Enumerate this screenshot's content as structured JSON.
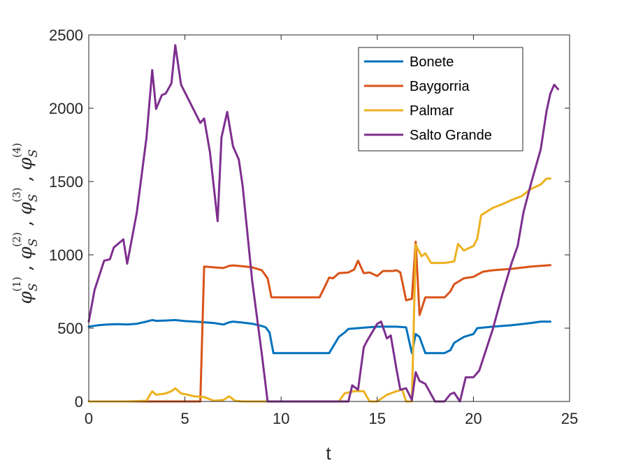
{
  "chart_data": {
    "type": "line",
    "title": "",
    "xlabel": "t",
    "ylabel": {
      "base": "φ",
      "sub": "S",
      "sups": [
        "(1)",
        "(2)",
        "(3)",
        "(4)"
      ],
      "separator": ","
    },
    "xlim": [
      0,
      25
    ],
    "ylim": [
      0,
      2500
    ],
    "xticks": [
      0,
      5,
      10,
      15,
      20,
      25
    ],
    "yticks": [
      0,
      500,
      1000,
      1500,
      2000,
      2500
    ],
    "grid": false,
    "legend_position": "top-right",
    "series": [
      {
        "name": "Bonete",
        "color": "#0072BD",
        "points": [
          [
            0,
            510
          ],
          [
            0.5,
            520
          ],
          [
            1,
            525
          ],
          [
            1.5,
            527
          ],
          [
            2,
            525
          ],
          [
            2.5,
            530
          ],
          [
            3,
            545
          ],
          [
            3.3,
            555
          ],
          [
            3.5,
            550
          ],
          [
            4,
            552
          ],
          [
            4.5,
            555
          ],
          [
            5,
            548
          ],
          [
            5.5,
            545
          ],
          [
            6,
            540
          ],
          [
            6.5,
            535
          ],
          [
            7,
            525
          ],
          [
            7.3,
            540
          ],
          [
            7.5,
            545
          ],
          [
            8,
            538
          ],
          [
            8.5,
            530
          ],
          [
            9,
            515
          ],
          [
            9.2,
            505
          ],
          [
            9.4,
            470
          ],
          [
            9.6,
            330
          ],
          [
            10,
            330
          ],
          [
            11,
            330
          ],
          [
            12,
            330
          ],
          [
            12.5,
            330
          ],
          [
            13,
            440
          ],
          [
            13.3,
            470
          ],
          [
            13.5,
            495
          ],
          [
            14,
            500
          ],
          [
            14.5,
            505
          ],
          [
            15,
            510
          ],
          [
            15.5,
            510
          ],
          [
            16,
            510
          ],
          [
            16.5,
            505
          ],
          [
            16.8,
            330
          ],
          [
            17,
            460
          ],
          [
            17.2,
            440
          ],
          [
            17.5,
            330
          ],
          [
            18,
            330
          ],
          [
            18.5,
            330
          ],
          [
            18.8,
            350
          ],
          [
            19,
            400
          ],
          [
            19.5,
            440
          ],
          [
            20,
            460
          ],
          [
            20.2,
            500
          ],
          [
            21,
            510
          ],
          [
            22,
            520
          ],
          [
            23,
            535
          ],
          [
            23.5,
            545
          ],
          [
            24,
            545
          ]
        ]
      },
      {
        "name": "Baygorria",
        "color": "#D95319",
        "points": [
          [
            0,
            0
          ],
          [
            1,
            0
          ],
          [
            2,
            0
          ],
          [
            3,
            0
          ],
          [
            4,
            0
          ],
          [
            5,
            0
          ],
          [
            5.8,
            0
          ],
          [
            6,
            920
          ],
          [
            6.5,
            915
          ],
          [
            7,
            910
          ],
          [
            7.3,
            925
          ],
          [
            7.5,
            928
          ],
          [
            8,
            922
          ],
          [
            8.5,
            915
          ],
          [
            9,
            895
          ],
          [
            9.3,
            840
          ],
          [
            9.5,
            710
          ],
          [
            10,
            710
          ],
          [
            11,
            710
          ],
          [
            12,
            710
          ],
          [
            12.3,
            790
          ],
          [
            12.5,
            845
          ],
          [
            12.7,
            840
          ],
          [
            13,
            875
          ],
          [
            13.5,
            880
          ],
          [
            13.8,
            900
          ],
          [
            14,
            960
          ],
          [
            14.3,
            875
          ],
          [
            14.6,
            880
          ],
          [
            15,
            855
          ],
          [
            15.3,
            890
          ],
          [
            15.8,
            890
          ],
          [
            16,
            895
          ],
          [
            16.2,
            880
          ],
          [
            16.5,
            690
          ],
          [
            16.8,
            700
          ],
          [
            17,
            1090
          ],
          [
            17.2,
            590
          ],
          [
            17.5,
            710
          ],
          [
            18,
            710
          ],
          [
            18.5,
            710
          ],
          [
            18.8,
            750
          ],
          [
            19,
            800
          ],
          [
            19.5,
            840
          ],
          [
            20,
            850
          ],
          [
            20.5,
            885
          ],
          [
            21,
            895
          ],
          [
            22,
            905
          ],
          [
            23,
            920
          ],
          [
            24,
            930
          ]
        ]
      },
      {
        "name": "Palmar",
        "color": "#EDB120",
        "points": [
          [
            0,
            0
          ],
          [
            1,
            0
          ],
          [
            2,
            0
          ],
          [
            3,
            5
          ],
          [
            3.3,
            70
          ],
          [
            3.5,
            45
          ],
          [
            4,
            55
          ],
          [
            4.3,
            70
          ],
          [
            4.5,
            90
          ],
          [
            4.8,
            55
          ],
          [
            5,
            50
          ],
          [
            5.5,
            35
          ],
          [
            6,
            30
          ],
          [
            6.5,
            5
          ],
          [
            7,
            10
          ],
          [
            7.3,
            35
          ],
          [
            7.6,
            5
          ],
          [
            8,
            0
          ],
          [
            9,
            0
          ],
          [
            10,
            0
          ],
          [
            11,
            0
          ],
          [
            12,
            0
          ],
          [
            13,
            0
          ],
          [
            13.3,
            55
          ],
          [
            13.8,
            70
          ],
          [
            14.3,
            70
          ],
          [
            14.6,
            0
          ],
          [
            15,
            0
          ],
          [
            15.5,
            45
          ],
          [
            16,
            70
          ],
          [
            16.3,
            80
          ],
          [
            16.5,
            0
          ],
          [
            16.8,
            0
          ],
          [
            17,
            1070
          ],
          [
            17.3,
            990
          ],
          [
            17.5,
            1010
          ],
          [
            17.8,
            945
          ],
          [
            18,
            945
          ],
          [
            18.5,
            945
          ],
          [
            19,
            955
          ],
          [
            19.2,
            1075
          ],
          [
            19.5,
            1030
          ],
          [
            20,
            1060
          ],
          [
            20.2,
            1110
          ],
          [
            20.4,
            1270
          ],
          [
            21,
            1320
          ],
          [
            21.5,
            1345
          ],
          [
            22,
            1375
          ],
          [
            22.5,
            1400
          ],
          [
            23,
            1450
          ],
          [
            23.5,
            1480
          ],
          [
            23.8,
            1520
          ],
          [
            24,
            1520
          ]
        ]
      },
      {
        "name": "Salto Grande",
        "color": "#7E2F8E",
        "points": [
          [
            0,
            545
          ],
          [
            0.3,
            760
          ],
          [
            0.8,
            960
          ],
          [
            1.1,
            970
          ],
          [
            1.3,
            1050
          ],
          [
            1.8,
            1105
          ],
          [
            2,
            940
          ],
          [
            2.5,
            1290
          ],
          [
            3,
            1800
          ],
          [
            3.3,
            2260
          ],
          [
            3.5,
            1995
          ],
          [
            3.8,
            2090
          ],
          [
            4,
            2100
          ],
          [
            4.3,
            2170
          ],
          [
            4.5,
            2430
          ],
          [
            4.8,
            2160
          ],
          [
            5.3,
            2030
          ],
          [
            5.8,
            1900
          ],
          [
            6,
            1930
          ],
          [
            6.3,
            1700
          ],
          [
            6.7,
            1230
          ],
          [
            6.9,
            1800
          ],
          [
            7.2,
            1975
          ],
          [
            7.5,
            1740
          ],
          [
            7.8,
            1650
          ],
          [
            8,
            1470
          ],
          [
            8.5,
            820
          ],
          [
            9,
            320
          ],
          [
            9.3,
            0
          ],
          [
            10,
            0
          ],
          [
            11,
            0
          ],
          [
            12,
            0
          ],
          [
            13,
            0
          ],
          [
            13.5,
            0
          ],
          [
            13.7,
            110
          ],
          [
            14,
            80
          ],
          [
            14.3,
            370
          ],
          [
            14.5,
            420
          ],
          [
            15,
            530
          ],
          [
            15.2,
            545
          ],
          [
            15.5,
            430
          ],
          [
            15.7,
            450
          ],
          [
            16,
            220
          ],
          [
            16.2,
            80
          ],
          [
            16.5,
            90
          ],
          [
            16.8,
            10
          ],
          [
            17,
            200
          ],
          [
            17.2,
            140
          ],
          [
            17.5,
            120
          ],
          [
            18,
            0
          ],
          [
            18.5,
            0
          ],
          [
            18.8,
            50
          ],
          [
            19,
            60
          ],
          [
            19.3,
            0
          ],
          [
            19.6,
            165
          ],
          [
            20,
            165
          ],
          [
            20.3,
            210
          ],
          [
            21,
            490
          ],
          [
            21.5,
            730
          ],
          [
            22,
            950
          ],
          [
            22.3,
            1060
          ],
          [
            22.6,
            1290
          ],
          [
            23,
            1490
          ],
          [
            23.5,
            1720
          ],
          [
            23.8,
            1980
          ],
          [
            24,
            2100
          ],
          [
            24.2,
            2160
          ],
          [
            24.4,
            2130
          ]
        ]
      }
    ]
  }
}
